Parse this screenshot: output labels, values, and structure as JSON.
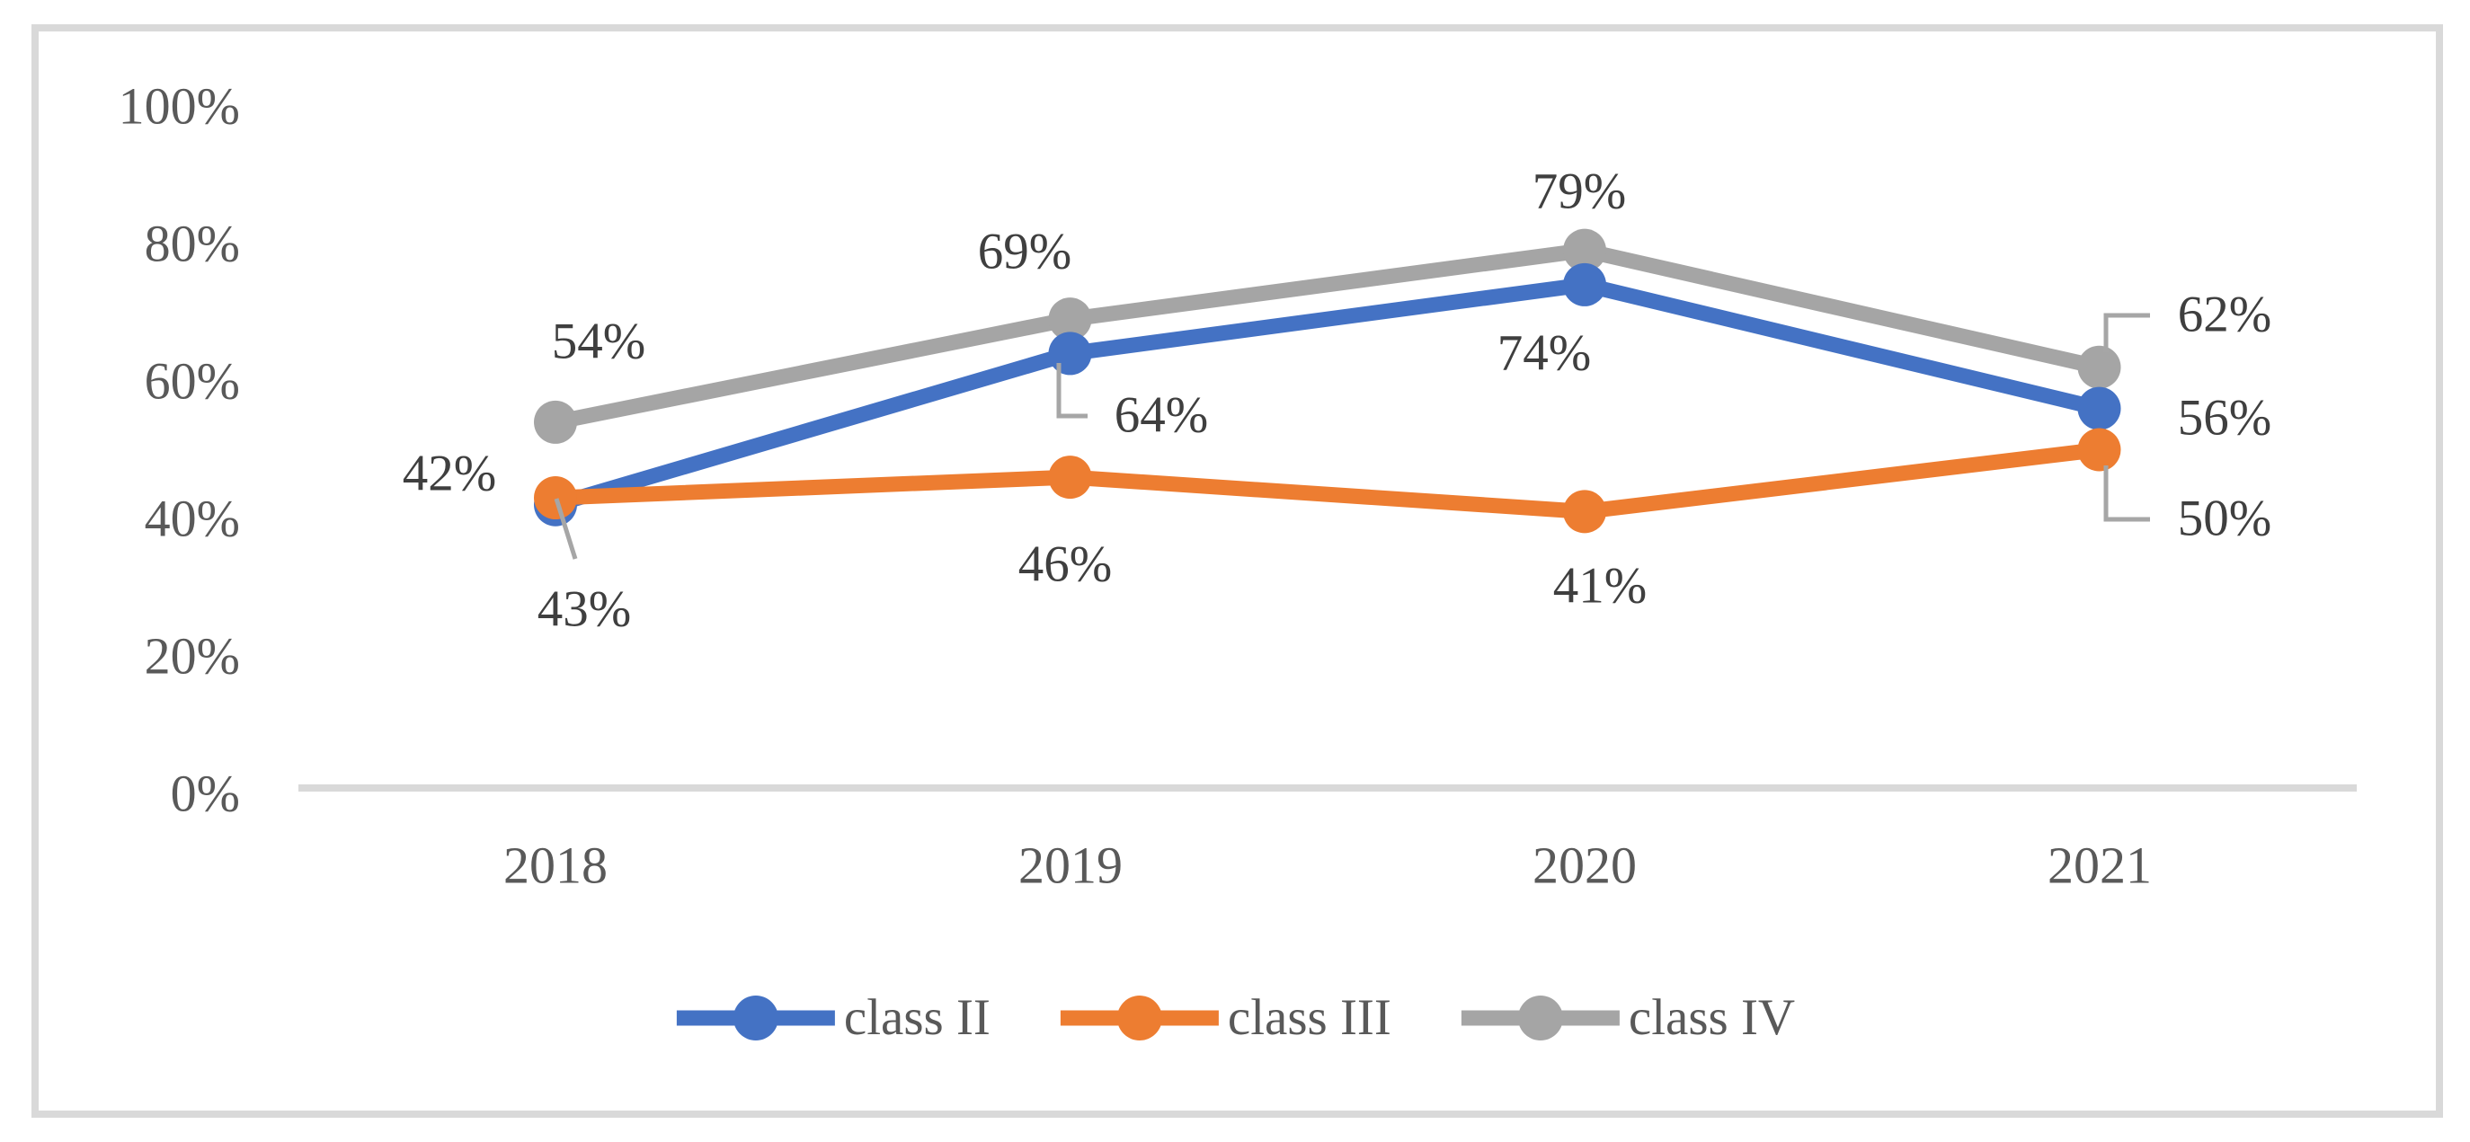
{
  "chart_data": {
    "type": "line",
    "title": "",
    "categories": [
      "2018",
      "2019",
      "2020",
      "2021"
    ],
    "series": [
      {
        "name": "class II",
        "color": "#4472C4",
        "values": [
          42,
          64,
          74,
          56
        ],
        "labels": [
          "42%",
          "64%",
          "74%",
          "56%"
        ]
      },
      {
        "name": "class III",
        "color": "#ED7D31",
        "values": [
          43,
          46,
          41,
          50
        ],
        "labels": [
          "43%",
          "46%",
          "41%",
          "50%"
        ]
      },
      {
        "name": "class IV",
        "color": "#A5A5A5",
        "values": [
          54,
          69,
          79,
          62
        ],
        "labels": [
          "54%",
          "69%",
          "79%",
          "62%"
        ]
      }
    ],
    "ylim": [
      0,
      100
    ],
    "y_ticks": [
      "0%",
      "20%",
      "40%",
      "60%",
      "80%",
      "100%"
    ],
    "grid": false,
    "data_labels": true,
    "legend_position": "bottom",
    "axis_line_color": "#D9D9D9",
    "frame_border_color": "#D9D9D9",
    "leader_line_color": "#A6A6A6",
    "tick_label_color": "#595959",
    "data_label_color": "#3F3F3F"
  }
}
